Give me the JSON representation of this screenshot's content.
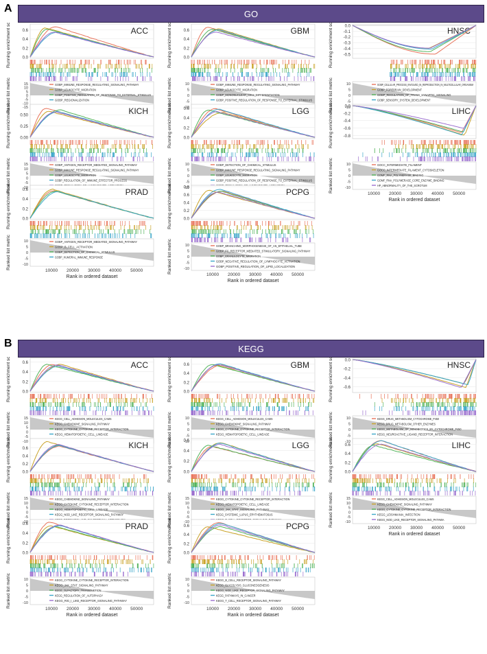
{
  "panels": [
    {
      "letter": "A",
      "banner": "GO"
    },
    {
      "letter": "B",
      "banner": "KEGG"
    }
  ],
  "axis_texts": {
    "y_top": "Running enrichment score",
    "y_bottom": "Ranked list metric",
    "x": "Rank in ordered dataset",
    "x_ticks": [
      "10000",
      "20000",
      "30000",
      "40000",
      "50000"
    ]
  },
  "colors": [
    "#e8735a",
    "#c9a227",
    "#52b35a",
    "#3aa6c9",
    "#9b6fcf"
  ],
  "chart_data": [
    {
      "section": "GO",
      "type": "line",
      "title": "ACC",
      "ylim": [
        0,
        0.7
      ],
      "yticks": [
        "0.6",
        "0.4",
        "0.2",
        "0.0"
      ],
      "mode": "pos",
      "metric_ticks": [
        "15",
        "10",
        "5",
        "0",
        "-5",
        "-10",
        "-15"
      ],
      "series": [
        {
          "name": "GOBP_IMMUNE_RESPONSE_REGULATING_SIGNALING_PATHWAY"
        },
        {
          "name": "GOBP_LEUKOCYTE_MIGRATION"
        },
        {
          "name": "GOBP_POSITIVE_REGULATION_OF_RESPONSE_TO_EXTERNAL_STIMULUS"
        },
        {
          "name": "GOBP_REGIONALIZATION"
        },
        {
          "name": "GOBP_SIGNAL_RELEASE"
        }
      ]
    },
    {
      "section": "GO",
      "type": "line",
      "title": "GBM",
      "ylim": [
        0,
        0.7
      ],
      "yticks": [
        "0.6",
        "0.4",
        "0.2",
        "0.0"
      ],
      "mode": "pos",
      "metric_ticks": [
        "10",
        "5",
        "0",
        "-5",
        "-10"
      ],
      "series": [
        {
          "name": "GOBP_IMMUNE_RESPONSE_REGULATING_SIGNALING_PATHWAY"
        },
        {
          "name": "GOBP_LEUKOCYTE_MIGRATION"
        },
        {
          "name": "GOBP_MONONUCLEAR_CELL_DIFFERENTIATION"
        },
        {
          "name": "GOBP_POSITIVE_REGULATION_OF_RESPONSE_TO_EXTERNAL_STIMULUS"
        },
        {
          "name": "GOBP_REGULATION_OF_LYMPHOCYTE_ACTIVATION"
        }
      ]
    },
    {
      "section": "GO",
      "type": "line",
      "title": "HNSC",
      "ylim": [
        -0.55,
        0
      ],
      "yticks": [
        "0.0",
        "-0.1",
        "-0.2",
        "-0.3",
        "-0.4",
        "-0.5"
      ],
      "mode": "neg",
      "metric_ticks": [
        "10",
        "5",
        "0",
        "-5",
        "-10"
      ],
      "series": [
        {
          "name": "GOBP_CELLULAR_PROCESS_INVOLVED_IN_REPRODUCTION_IN_MULTICELLULAR_ORGANISM"
        },
        {
          "name": "GOBP_FOREBRAIN_DEVELOPMENT"
        },
        {
          "name": "GOBP_REGULATION_OF_TRANS_SYNAPTIC_SIGNALING"
        },
        {
          "name": "GOBP_SENSORY_SYSTEM_DEVELOPMENT"
        },
        {
          "name": "GOCC_SYNAPTIC_MEMBRANE"
        }
      ]
    },
    {
      "section": "GO",
      "type": "line",
      "title": "KICH",
      "ylim": [
        0,
        0.7
      ],
      "yticks": [
        "0.50",
        "0.25",
        "0.00"
      ],
      "mode": "pos",
      "metric_ticks": [
        "15",
        "10",
        "5",
        "0",
        "-5",
        "-10"
      ],
      "series": [
        {
          "name": "GOBP_ANTIGEN_RECEPTOR_MEDIATED_SIGNALING_PATHWAY"
        },
        {
          "name": "GOBP_IMMUNE_RESPONSE_REGULATING_SIGNALING_PATHWAY"
        },
        {
          "name": "GOBP_LEUKOCYTE_MIGRATION"
        },
        {
          "name": "GOBP_REGULATION_OF_IMMUNE_EFFECTOR_PROCESS"
        },
        {
          "name": "GOBP_REGULATION_OF_LYMPHOCYTE_ACTIVATION"
        }
      ]
    },
    {
      "section": "GO",
      "type": "line",
      "title": "LGG",
      "ylim": [
        0,
        0.65
      ],
      "yticks": [
        "0.6",
        "0.4",
        "0.2",
        "0.0"
      ],
      "mode": "pos",
      "metric_ticks": [
        "10",
        "5",
        "0",
        "-5",
        "-10"
      ],
      "series": [
        {
          "name": "GOBP_DETECTION_OF_CHEMICAL_STIMULUS"
        },
        {
          "name": "GOBP_IMMUNE_RESPONSE_REGULATING_SIGNALING_PATHWAY"
        },
        {
          "name": "GOBP_LEUKOCYTE_MIGRATION"
        },
        {
          "name": "GOBP_POSITIVE_REGULATION_OF_RESPONSE_TO_EXTERNAL_STIMULUS"
        },
        {
          "name": "GOBP_REGULATION_OF_LYMPHOCYTE_ACTIVATION"
        }
      ]
    },
    {
      "section": "GO",
      "type": "line",
      "title": "LIHC",
      "ylim": [
        -0.85,
        0
      ],
      "yticks": [
        "0.0",
        "-0.2",
        "-0.4",
        "-0.6",
        "-0.8"
      ],
      "mode": "negLate",
      "metric_ticks": [
        "10",
        "5",
        "0",
        "-5",
        "-10"
      ],
      "series": [
        {
          "name": "GOCC_INTERMEDIATE_FILAMENT"
        },
        {
          "name": "GOCC_INTERMEDIATE_FILAMENT_CYTOSKELETON"
        },
        {
          "name": "GOMF_RNA_POLYMERASE_BINDING"
        },
        {
          "name": "GOMF_RNA_POLYMERASE_CORE_ENZYME_BINDING"
        },
        {
          "name": "HP_ABNORMALITY_OF_THE_SCROTUM"
        }
      ]
    },
    {
      "section": "GO",
      "type": "line",
      "title": "PRAD",
      "ylim": [
        0,
        0.65
      ],
      "yticks": [
        "0.6",
        "0.4",
        "0.2",
        "0.0"
      ],
      "mode": "pos",
      "metric_ticks": [
        "10",
        "5",
        "0",
        "-5",
        "-10"
      ],
      "series": [
        {
          "name": "GOBP_ANTIGEN_RECEPTOR_MEDIATED_SIGNALING_PATHWAY"
        },
        {
          "name": "GOBP_B_CELL_ACTIVATION"
        },
        {
          "name": "GOBP_DETECTION_OF_CHEMICAL_STIMULUS"
        },
        {
          "name": "GOBP_HUMORAL_IMMUNE_RESPONSE"
        }
      ]
    },
    {
      "section": "GO",
      "type": "line",
      "title": "PCPG",
      "ylim": [
        0,
        0.8
      ],
      "yticks": [
        "0.8",
        "0.6",
        "0.4",
        "0.2",
        "0.0"
      ],
      "mode": "pos",
      "metric_ticks": [
        "10",
        "5",
        "0",
        "-5",
        "-10"
      ],
      "series": [
        {
          "name": "GOBP_BRANCHING_MORPHOGENESIS_OF_AN_EPITHELIAL_TUBE"
        },
        {
          "name": "GOBP_FC_RECEPTOR_MEDIATED_STIMULATORY_SIGNALING_PATHWAY"
        },
        {
          "name": "GOBP_GRANULOCYTE_MIGRATION"
        },
        {
          "name": "GOBP_NEGATIVE_REGULATION_OF_LYMPHOCYTE_ACTIVATION"
        },
        {
          "name": "GOBP_POSITIVE_REGULATION_OF_LIPID_LOCALIZATION"
        }
      ]
    },
    {
      "section": "KEGG",
      "type": "line",
      "title": "ACC",
      "ylim": [
        0,
        0.65
      ],
      "yticks": [
        "0.6",
        "0.4",
        "0.2",
        "0.0"
      ],
      "mode": "pos",
      "metric_ticks": [
        "15",
        "10",
        "5",
        "0",
        "-5",
        "-10"
      ],
      "series": [
        {
          "name": "KEGG_CELL_ADHESION_MOLECULES_CAMS"
        },
        {
          "name": "KEGG_CHEMOKINE_SIGNALING_PATHWAY"
        },
        {
          "name": "KEGG_CYTOKINE_CYTOKINE_RECEPTOR_INTERACTION"
        },
        {
          "name": "KEGG_HEMATOPOIETIC_CELL_LINEAGE"
        },
        {
          "name": "KEGG_T_CELL_RECEPTOR_SIGNALING_PATHWAY"
        }
      ]
    },
    {
      "section": "KEGG",
      "type": "line",
      "title": "GBM",
      "ylim": [
        0,
        0.7
      ],
      "yticks": [
        "0.6",
        "0.4",
        "0.2",
        "0.0"
      ],
      "mode": "pos",
      "metric_ticks": [
        "10",
        "5",
        "0",
        "-5",
        "-10"
      ],
      "series": [
        {
          "name": "KEGG_CELL_ADHESION_MOLECULES_CAMS"
        },
        {
          "name": "KEGG_CHEMOKINE_SIGNALING_PATHWAY"
        },
        {
          "name": "KEGG_CYTOKINE_CYTOKINE_RECEPTOR_INTERACTION"
        },
        {
          "name": "KEGG_HEMATOPOIETIC_CELL_LINEAGE"
        },
        {
          "name": "KEGG_NATURAL_KILLER_CELL_MEDIATED_CYTOTOXICITY"
        }
      ]
    },
    {
      "section": "KEGG",
      "type": "line",
      "title": "HNSC",
      "ylim": [
        -0.7,
        0
      ],
      "yticks": [
        "0.0",
        "-0.2",
        "-0.4",
        "-0.6"
      ],
      "mode": "negLate",
      "metric_ticks": [
        "10",
        "5",
        "0",
        "-5",
        "-10"
      ],
      "series": [
        {
          "name": "KEGG_DRUG_METABOLISM_CYTOCHROME_P450"
        },
        {
          "name": "KEGG_DRUG_METABOLISM_OTHER_ENZYMES"
        },
        {
          "name": "KEGG_METABOLISM_OF_XENOBIOTICS_BY_CYTOCHROME_P450"
        },
        {
          "name": "KEGG_NEUROACTIVE_LIGAND_RECEPTOR_INTERACTION"
        },
        {
          "name": "KEGG_RETINOL_METABOLISM"
        }
      ]
    },
    {
      "section": "KEGG",
      "type": "line",
      "title": "KICH",
      "ylim": [
        0,
        0.8
      ],
      "yticks": [
        "0.6",
        "0.4",
        "0.2",
        "0.0"
      ],
      "mode": "pos",
      "metric_ticks": [
        "15",
        "10",
        "5",
        "0",
        "-5",
        "-10"
      ],
      "series": [
        {
          "name": "KEGG_CHEMOKINE_SIGNALING_PATHWAY"
        },
        {
          "name": "KEGG_CYTOKINE_CYTOKINE_RECEPTOR_INTERACTION"
        },
        {
          "name": "KEGG_HEMATOPOIETIC_CELL_LINEAGE"
        },
        {
          "name": "KEGG_NOD_LIKE_RECEPTOR_SIGNALING_PATHWAY"
        },
        {
          "name": "KEGG_PORPHYRIN_AND_CHLOROPHYLL_METABOLISM"
        }
      ]
    },
    {
      "section": "KEGG",
      "type": "line",
      "title": "LGG",
      "ylim": [
        0,
        0.6
      ],
      "yticks": [
        "0.6",
        "0.4",
        "0.2",
        "0.0"
      ],
      "mode": "pos",
      "metric_ticks": [
        "15",
        "10",
        "5",
        "0",
        "-5",
        "-10"
      ],
      "series": [
        {
          "name": "KEGG_CYTOKINE_CYTOKINE_RECEPTOR_INTERACTION"
        },
        {
          "name": "KEGG_HEMATOPOIETIC_CELL_LINEAGE"
        },
        {
          "name": "KEGG_JAK_STAT_SIGNALING_PATHWAY"
        },
        {
          "name": "KEGG_SYSTEMIC_LUPUS_ERYTHEMATOSUS"
        },
        {
          "name": "KEGG_T_CELL_RECEPTOR_SIGNALING_PATHWAY"
        }
      ]
    },
    {
      "section": "KEGG",
      "type": "line",
      "title": "LIHC",
      "ylim": [
        0,
        0.7
      ],
      "yticks": [
        "0.6",
        "0.4",
        "0.2",
        "0.0"
      ],
      "mode": "pos",
      "metric_ticks": [
        "15",
        "10",
        "5",
        "0",
        "-5",
        "-10"
      ],
      "series": [
        {
          "name": "KEGG_CELL_ADHESION_MOLECULES_CAMS"
        },
        {
          "name": "KEGG_CHEMOKINE_SIGNALING_PATHWAY"
        },
        {
          "name": "KEGG_CYTOKINE_CYTOKINE_RECEPTOR_INTERACTION"
        },
        {
          "name": "KEGG_LEISHMANIA_INFECTION"
        },
        {
          "name": "KEGG_NOD_LIKE_RECEPTOR_SIGNALING_PATHWA"
        }
      ]
    },
    {
      "section": "KEGG",
      "type": "line",
      "title": "PRAD",
      "ylim": [
        0,
        0.65
      ],
      "yticks": [
        "0.6",
        "0.4",
        "0.2",
        "0.0"
      ],
      "mode": "pos",
      "metric_ticks": [
        "10",
        "5",
        "0",
        "-5",
        "-10"
      ],
      "series": [
        {
          "name": "KEGG_CYTOKINE_CYTOKINE_RECEPTOR_INTERACTION"
        },
        {
          "name": "KEGG_JAK_STAT_SIGNALING_PATHWAY"
        },
        {
          "name": "KEGG_OLFACTORY_TRANSDUCTION"
        },
        {
          "name": "KEGG_REGULATION_OF_AUTOPHAGY"
        },
        {
          "name": "KEGG_RIG_I_LIKE_RECEPTOR_SIGNALING_PATHWAY"
        }
      ]
    },
    {
      "section": "KEGG",
      "type": "line",
      "title": "PCPG",
      "ylim": [
        0,
        0.7
      ],
      "yticks": [
        "0.6",
        "0.4",
        "0.2",
        "0.0"
      ],
      "mode": "pos",
      "metric_ticks": [
        "10",
        "5",
        "0",
        "-5",
        "-10"
      ],
      "series": [
        {
          "name": "KEGG_B_CELL_RECEPTOR_SIGNALING_PATHWAY"
        },
        {
          "name": "KEGG_GLYCOLYSIS_GLUCONEOGENESIS"
        },
        {
          "name": "KEGG_NOD_LIKE_RECEPTOR_SIGNALING_PATHWAY"
        },
        {
          "name": "KEGG_PATHWAYS_IN_CANCER"
        },
        {
          "name": "KEGG_T_CELL_RECEPTOR_SIGNALING_PATHWAY"
        }
      ]
    }
  ]
}
